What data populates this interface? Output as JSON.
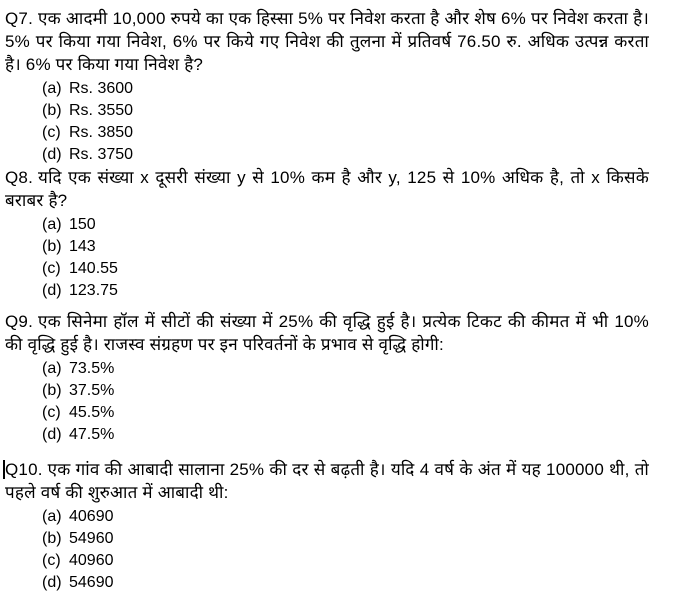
{
  "page": {
    "background_color": "#ffffff",
    "text_color": "#000000",
    "language": "Hindi"
  },
  "document": {
    "questions": [
      {
        "number": "Q7.",
        "text": "एक आदमी 10,000 रुपये का एक हिस्सा 5% पर निवेश करता है और शेष 6% पर निवेश करता है। 5% पर किया गया निवेश, 6% पर किये गए निवेश की तुलना में प्रतिवर्ष 76.50 रु. अधिक उत्पन्न करता है। 6% पर किया गया निवेश है?",
        "options": [
          {
            "label": "(a)",
            "value": "Rs. 3600"
          },
          {
            "label": "(b)",
            "value": "Rs. 3550"
          },
          {
            "label": "(c)",
            "value": "Rs. 3850"
          },
          {
            "label": "(d)",
            "value": "Rs. 3750"
          }
        ]
      },
      {
        "number": "Q8.",
        "text": "यदि एक संख्या x दूसरी संख्या y से 10% कम है और y, 125 से 10% अधिक है, तो x किसके बराबर है?",
        "options": [
          {
            "label": "(a)",
            "value": "150"
          },
          {
            "label": "(b)",
            "value": "143"
          },
          {
            "label": "(c)",
            "value": "140.55"
          },
          {
            "label": "(d)",
            "value": "123.75"
          }
        ]
      },
      {
        "number": "Q9.",
        "text": "एक सिनेमा हॉल में सीटों की संख्या में 25% की वृद्धि हुई है। प्रत्येक टिकट की कीमत में भी 10% की वृद्धि हुई है। राजस्व संग्रहण पर इन परिवर्तनों के प्रभाव से वृद्धि होगी:",
        "options": [
          {
            "label": "(a)",
            "value": "73.5%"
          },
          {
            "label": "(b)",
            "value": "37.5%"
          },
          {
            "label": "(c)",
            "value": "45.5%"
          },
          {
            "label": "(d)",
            "value": "47.5%"
          }
        ]
      },
      {
        "number": "Q10.",
        "text": "एक गांव की आबादी सालाना 25% की दर से बढ़ती है। यदि 4 वर्ष के अंत में यह 100000 थी, तो पहले वर्ष की शुरुआत में आबादी थी:",
        "options": [
          {
            "label": "(a)",
            "value": "40690"
          },
          {
            "label": "(b)",
            "value": "54960"
          },
          {
            "label": "(c)",
            "value": "40960"
          },
          {
            "label": "(d)",
            "value": "54690"
          }
        ]
      }
    ]
  }
}
